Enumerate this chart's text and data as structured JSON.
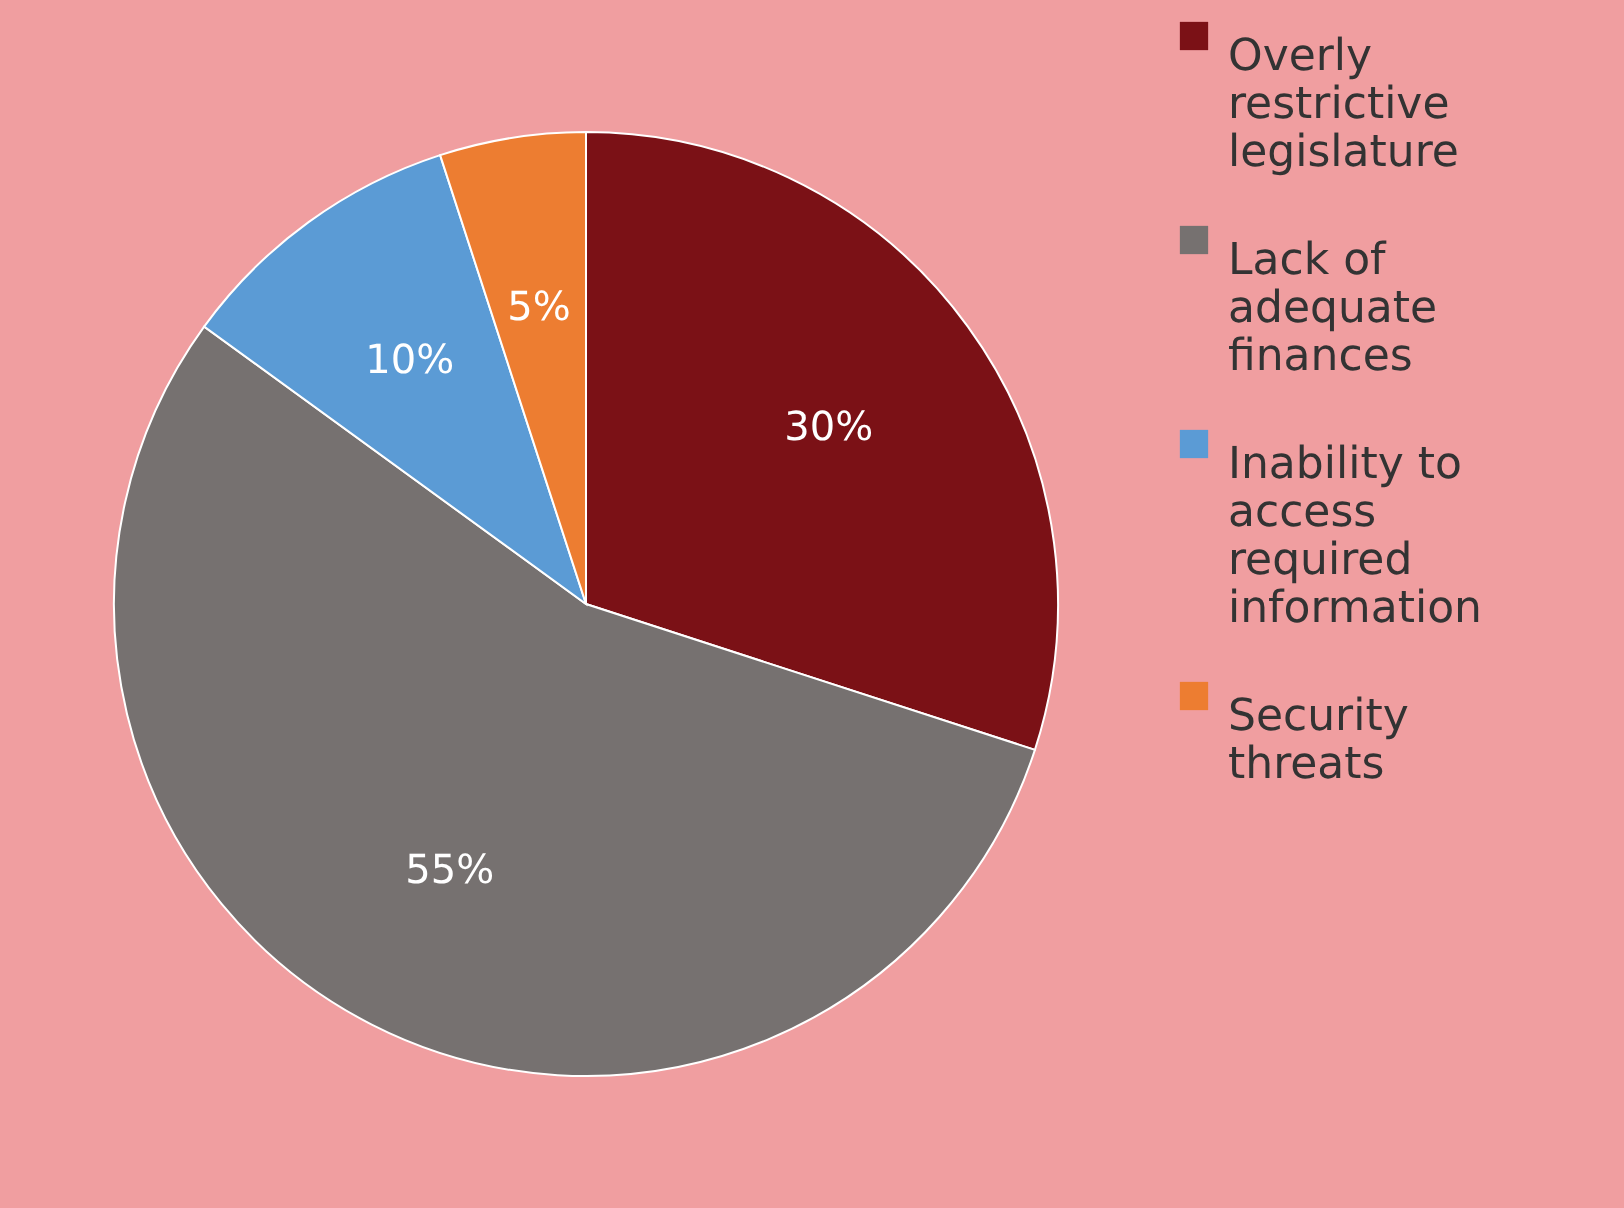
{
  "chart_data": {
    "type": "pie",
    "categories": [
      "Overly restrictive legislature",
      "Lack of adequate finances",
      "Inability to access required information",
      "Security threats"
    ],
    "values": [
      30,
      55,
      10,
      5
    ],
    "colors": [
      "#7b1116",
      "#767170",
      "#5b9bd5",
      "#ed7d31"
    ],
    "value_labels": [
      "30%",
      "55%",
      "10%",
      "5%"
    ],
    "legend": "right"
  }
}
